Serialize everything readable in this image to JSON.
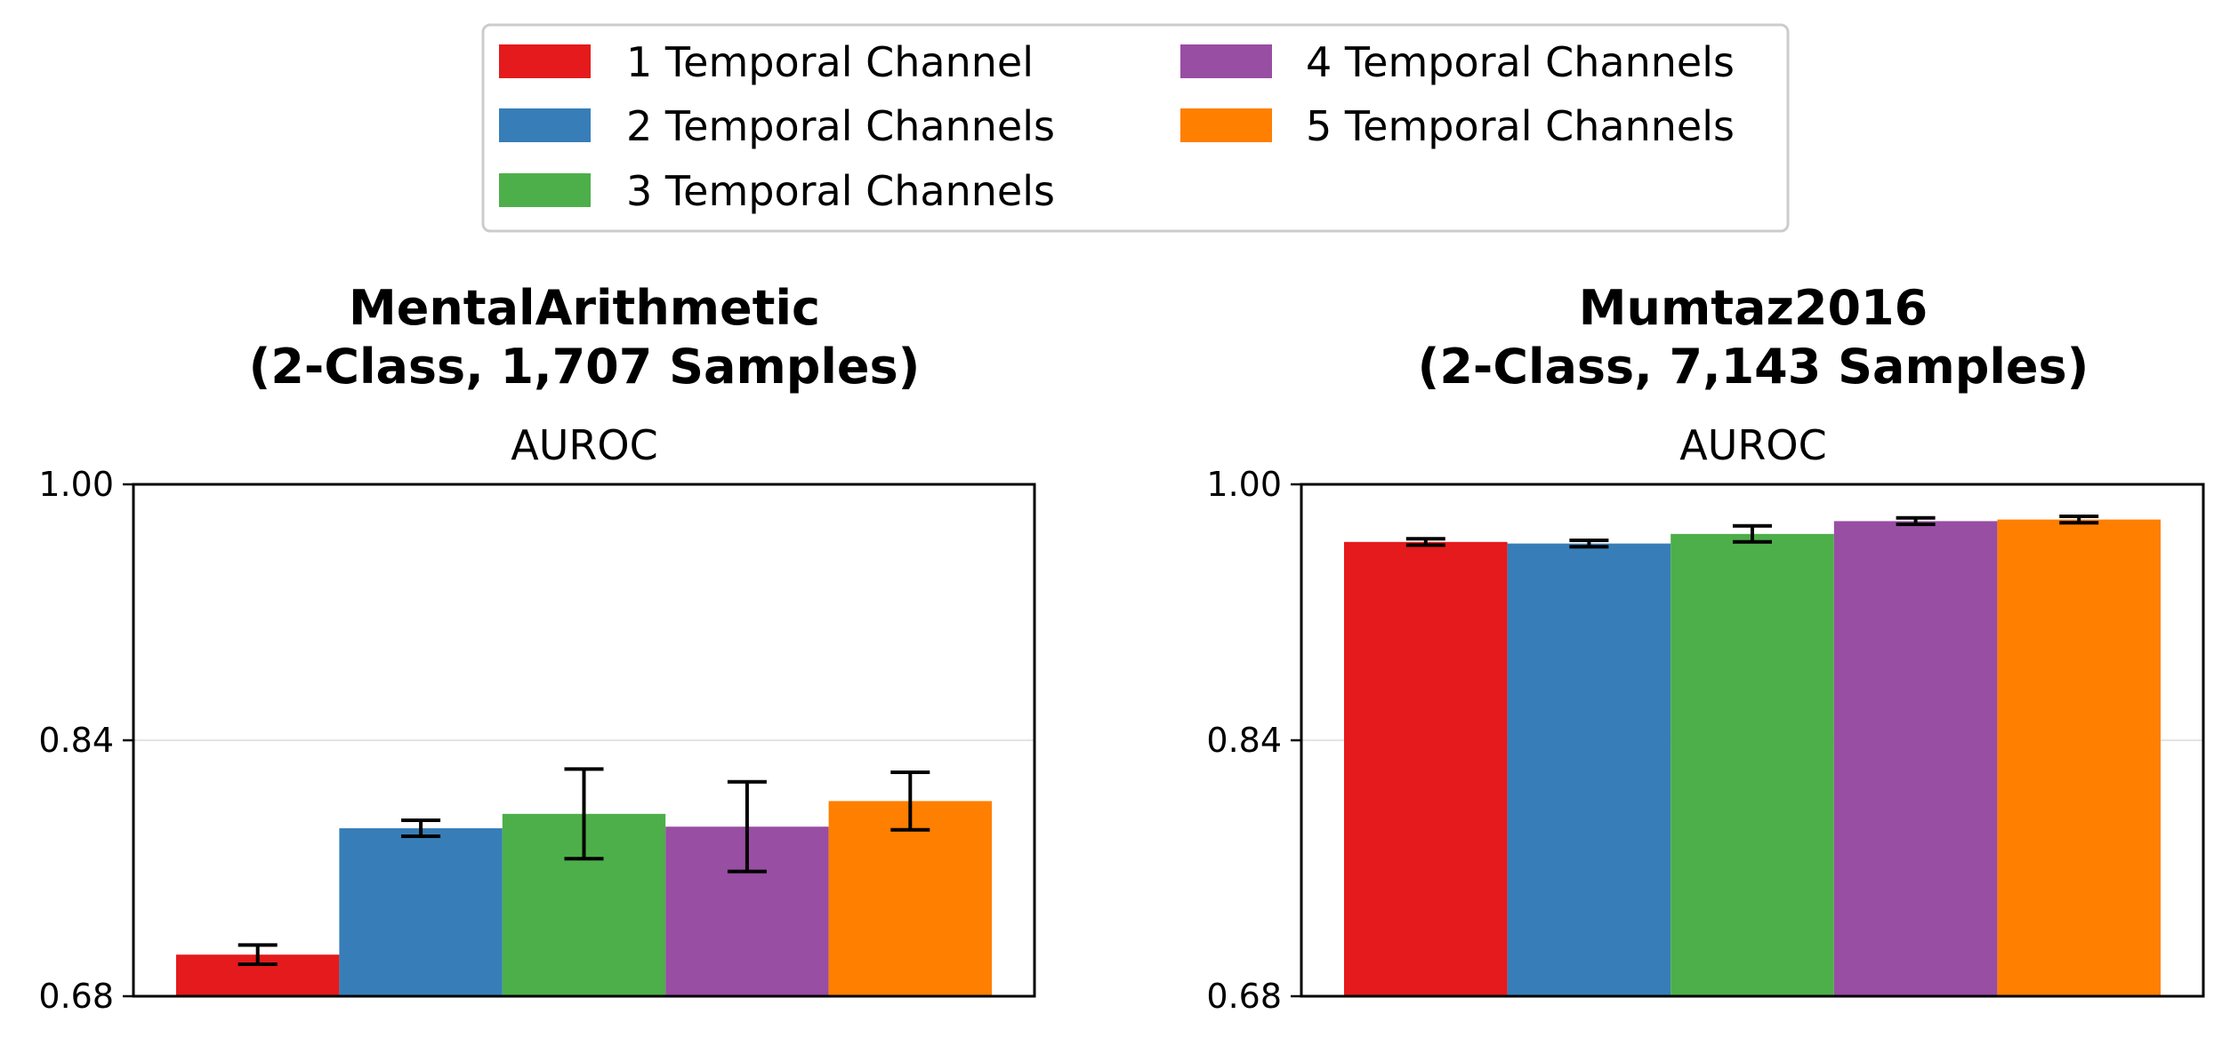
{
  "legend": {
    "entries": [
      {
        "label": "1 Temporal Channel",
        "color": "#e41a1c"
      },
      {
        "label": "2 Temporal Channels",
        "color": "#377eb8"
      },
      {
        "label": "3 Temporal Channels",
        "color": "#4daf4a"
      },
      {
        "label": "4 Temporal Channels",
        "color": "#984ea3"
      },
      {
        "label": "5 Temporal Channels",
        "color": "#ff7f00"
      }
    ]
  },
  "chart_data": [
    {
      "type": "bar",
      "title_line1": "MentalArithmetic",
      "title_line2": "(2-Class, 1,707 Samples)",
      "metric": "AUROC",
      "ylim": [
        0.68,
        1.0
      ],
      "yticks": [
        "0.68",
        "0.84",
        "1.00"
      ],
      "grid": "horizontal",
      "series": [
        {
          "name": "1 Temporal Channel",
          "value": 0.706,
          "err": 0.006
        },
        {
          "name": "2 Temporal Channels",
          "value": 0.785,
          "err": 0.005
        },
        {
          "name": "3 Temporal Channels",
          "value": 0.794,
          "err": 0.028
        },
        {
          "name": "4 Temporal Channels",
          "value": 0.786,
          "err": 0.028
        },
        {
          "name": "5 Temporal Channels",
          "value": 0.802,
          "err": 0.018
        }
      ]
    },
    {
      "type": "bar",
      "title_line1": "Mumtaz2016",
      "title_line2": "(2-Class, 7,143 Samples)",
      "metric": "AUROC",
      "ylim": [
        0.68,
        1.0
      ],
      "yticks": [
        "0.68",
        "0.84",
        "1.00"
      ],
      "grid": "horizontal",
      "series": [
        {
          "name": "1 Temporal Channel",
          "value": 0.964,
          "err": 0.002
        },
        {
          "name": "2 Temporal Channels",
          "value": 0.963,
          "err": 0.002
        },
        {
          "name": "3 Temporal Channels",
          "value": 0.969,
          "err": 0.005
        },
        {
          "name": "4 Temporal Channels",
          "value": 0.977,
          "err": 0.002
        },
        {
          "name": "5 Temporal Channels",
          "value": 0.978,
          "err": 0.002
        }
      ]
    }
  ]
}
